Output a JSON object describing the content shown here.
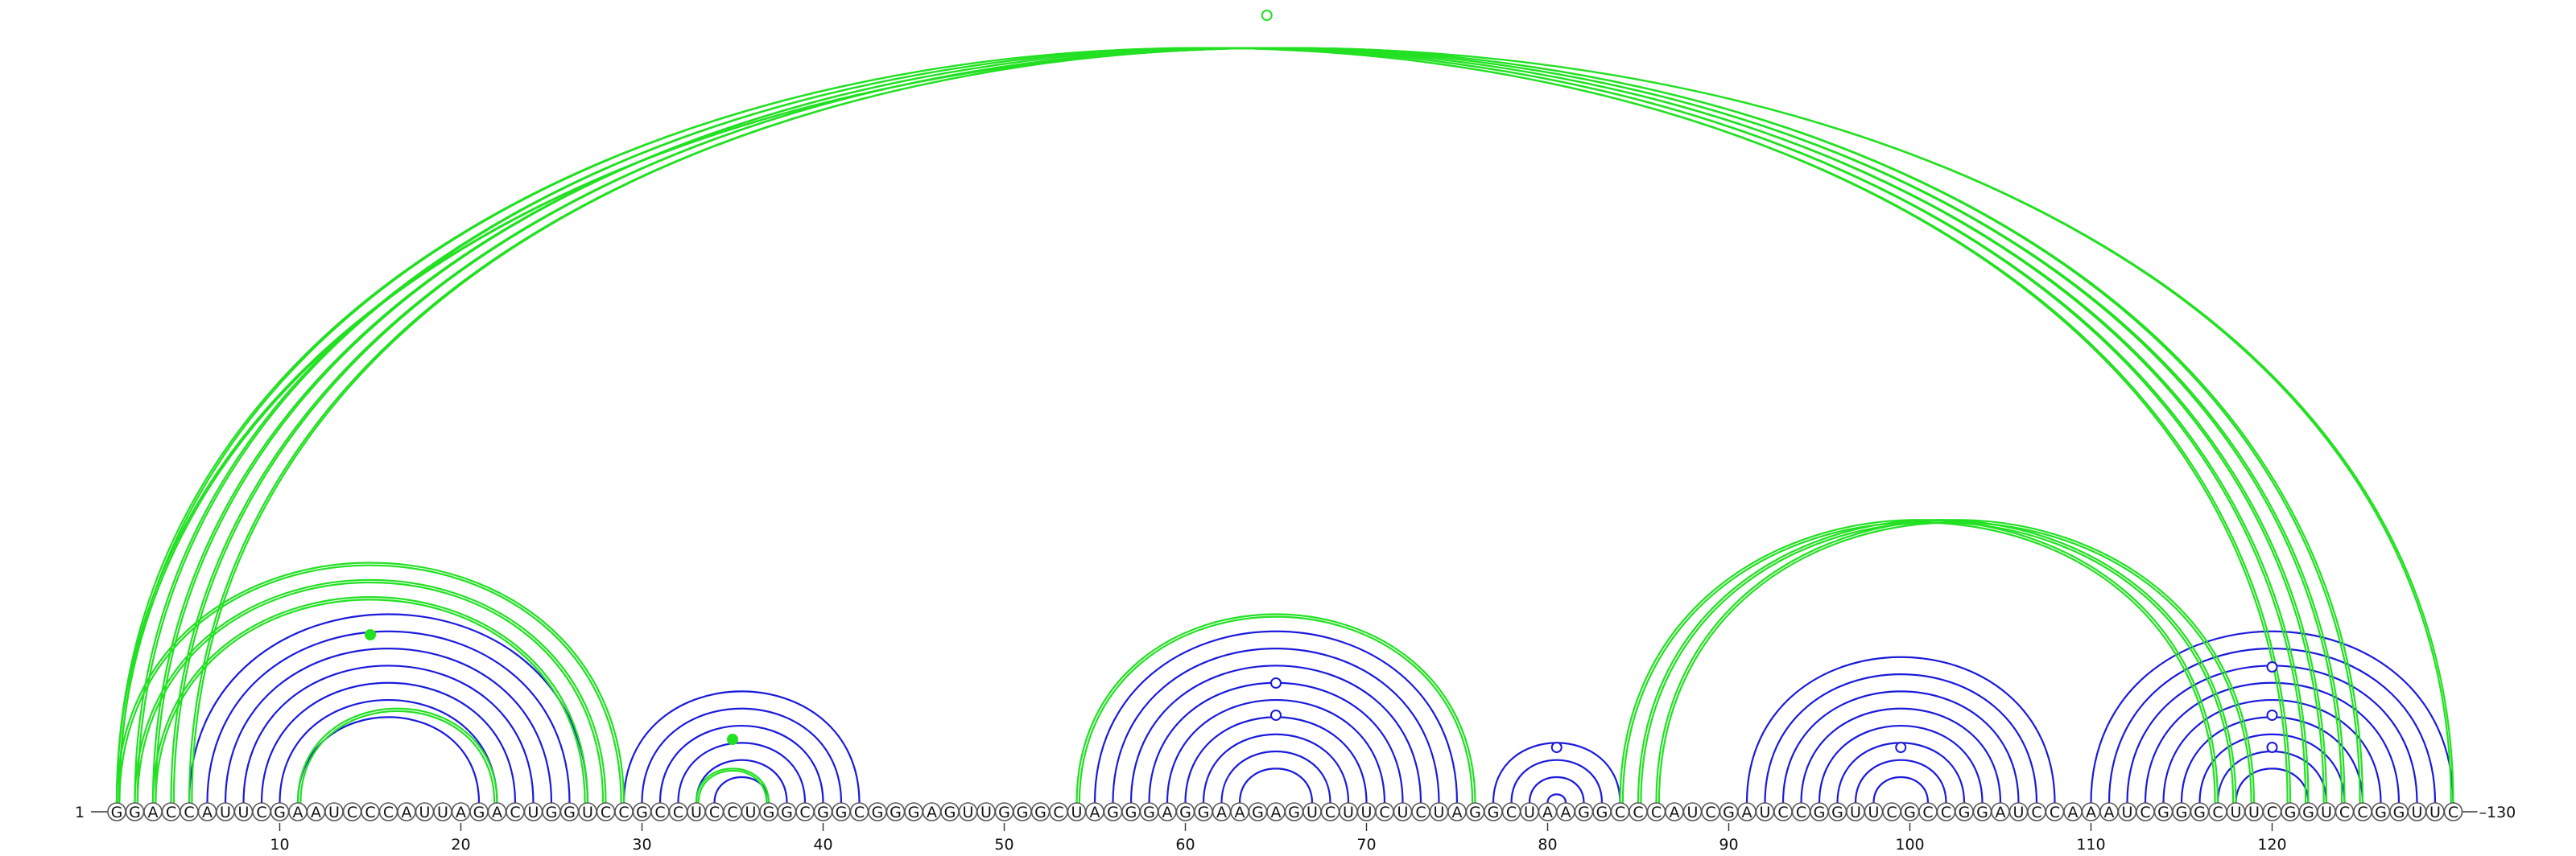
{
  "sequence": "GGACCAUUCGAAUCCCAUUAGACUGGUCCGCCUCCUGGCGGCGGGAGUUGGGCUAGGGAGGAAGAGUCUUCUCUAGGCUAAGGCCCAUCGAUCCGGUUCGCCGGAUCCAAAUCGGGCUUCGGUCCGGUUC",
  "start_label": "1",
  "end_label": "130",
  "ticks": [
    10,
    20,
    30,
    40,
    50,
    60,
    70,
    80,
    90,
    100,
    110,
    120
  ],
  "colors": {
    "green": "#22e022",
    "blue": "#1a1adc"
  },
  "pairs": {
    "blue": [
      [
        5,
        27
      ],
      [
        6,
        26
      ],
      [
        7,
        25
      ],
      [
        8,
        24
      ],
      [
        9,
        23
      ],
      [
        10,
        22
      ],
      [
        11,
        21
      ],
      [
        29,
        42
      ],
      [
        30,
        41
      ],
      [
        31,
        40
      ],
      [
        32,
        39
      ],
      [
        33,
        38
      ],
      [
        34,
        37
      ],
      [
        55,
        75
      ],
      [
        56,
        74
      ],
      [
        57,
        73
      ],
      [
        58,
        72
      ],
      [
        59,
        71
      ],
      [
        60,
        70
      ],
      [
        61,
        69
      ],
      [
        62,
        68
      ],
      [
        63,
        67
      ],
      [
        77,
        84
      ],
      [
        78,
        83
      ],
      [
        79,
        82
      ],
      [
        80,
        81
      ],
      [
        91,
        108
      ],
      [
        92,
        107
      ],
      [
        93,
        106
      ],
      [
        94,
        105
      ],
      [
        95,
        104
      ],
      [
        96,
        103
      ],
      [
        97,
        102
      ],
      [
        98,
        101
      ],
      [
        110,
        130
      ],
      [
        111,
        129
      ],
      [
        112,
        128
      ],
      [
        113,
        127
      ],
      [
        114,
        126
      ],
      [
        115,
        125
      ],
      [
        116,
        124
      ],
      [
        117,
        123
      ],
      [
        118,
        122
      ]
    ],
    "green_double": [
      [
        1,
        121
      ],
      [
        2,
        122
      ],
      [
        3,
        123
      ],
      [
        4,
        124
      ],
      [
        5,
        125
      ],
      [
        1,
        29
      ],
      [
        2,
        28
      ],
      [
        3,
        27
      ],
      [
        54,
        76
      ],
      [
        84,
        117
      ],
      [
        85,
        118
      ],
      [
        86,
        119
      ],
      [
        11,
        22
      ]
    ],
    "green_thin": [
      [
        1,
        130
      ],
      [
        33,
        37
      ]
    ]
  },
  "markers": [
    {
      "pos": 15,
      "height": 0.18,
      "color": "green",
      "filled": true
    },
    {
      "pos": 35,
      "height": 0.05,
      "color": "green",
      "filled": true
    },
    {
      "pos": 64.5,
      "height": 0.95,
      "color": "green",
      "filled": false
    },
    {
      "pos": 65,
      "height": 0.12,
      "color": "blue",
      "filled": false
    },
    {
      "pos": 65,
      "height": 0.08,
      "color": "blue",
      "filled": false
    },
    {
      "pos": 80.5,
      "height": 0.04,
      "color": "blue",
      "filled": false
    },
    {
      "pos": 99.5,
      "height": 0.04,
      "color": "blue",
      "filled": false
    },
    {
      "pos": 120,
      "height": 0.14,
      "color": "blue",
      "filled": false
    },
    {
      "pos": 120,
      "height": 0.08,
      "color": "blue",
      "filled": false
    },
    {
      "pos": 120,
      "height": 0.04,
      "color": "blue",
      "filled": false
    }
  ]
}
